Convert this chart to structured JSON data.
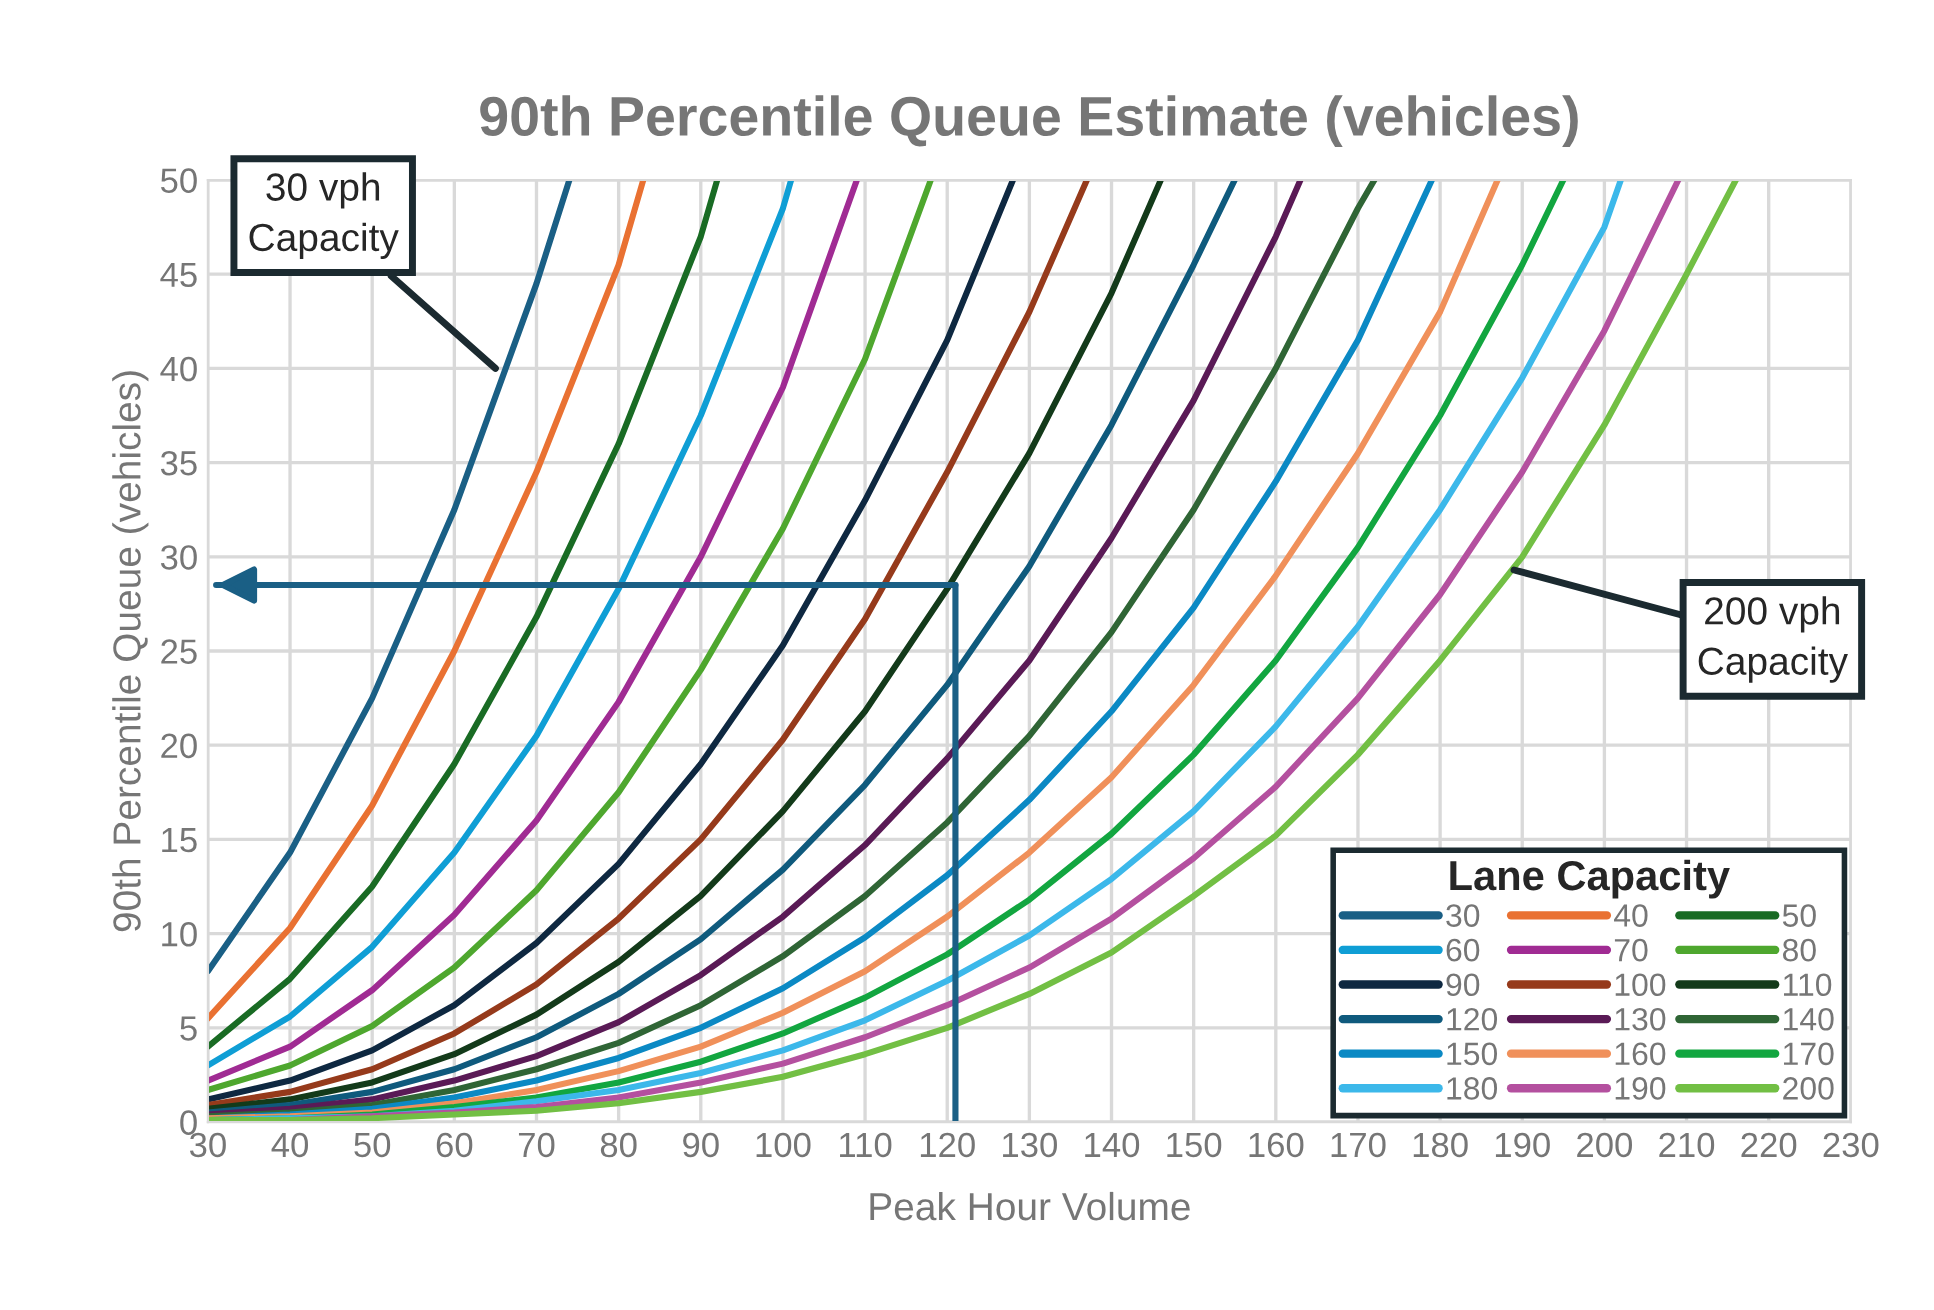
{
  "chart_data": {
    "type": "line",
    "title": "90th Percentile Queue Estimate (vehicles)",
    "xlabel": "Peak Hour Volume",
    "ylabel": "90th Percentile Queue (vehicles)",
    "legend_title": "Lane Capacity",
    "xlim": [
      30,
      230
    ],
    "xticks": [
      30,
      40,
      50,
      60,
      70,
      80,
      90,
      100,
      110,
      120,
      130,
      140,
      150,
      160,
      170,
      180,
      190,
      200,
      210,
      220,
      230
    ],
    "ylim": [
      0,
      50
    ],
    "yticks": [
      0,
      5,
      10,
      15,
      20,
      25,
      30,
      35,
      40,
      45,
      50
    ],
    "grid": true,
    "legend": "bottom right",
    "marker": "none",
    "line_style": "solid",
    "series": [
      {
        "name": "30",
        "color": "#1a5f85",
        "x": [
          30,
          40,
          50,
          60,
          70,
          74
        ],
        "values": [
          8,
          14.3,
          22.5,
          32.5,
          44.5,
          50
        ]
      },
      {
        "name": "40",
        "color": "#e97132",
        "x": [
          30,
          40,
          50,
          60,
          70,
          80,
          83
        ],
        "values": [
          5.5,
          10.3,
          16.8,
          25,
          34.5,
          45.5,
          50
        ]
      },
      {
        "name": "50",
        "color": "#196b24",
        "x": [
          30,
          40,
          50,
          60,
          70,
          80,
          90,
          92
        ],
        "values": [
          4,
          7.6,
          12.5,
          19,
          26.8,
          36,
          47,
          50
        ]
      },
      {
        "name": "60",
        "color": "#0f9ed5",
        "x": [
          30,
          40,
          50,
          60,
          70,
          80,
          90,
          100,
          101
        ],
        "values": [
          3,
          5.6,
          9.3,
          14.3,
          20.5,
          28.3,
          37.5,
          48.5,
          50
        ]
      },
      {
        "name": "70",
        "color": "#a02b93",
        "x": [
          30,
          40,
          50,
          60,
          70,
          80,
          90,
          100,
          109
        ],
        "values": [
          2.2,
          4,
          7,
          11,
          16,
          22.3,
          30,
          39,
          50
        ]
      },
      {
        "name": "80",
        "color": "#4ea72e",
        "x": [
          30,
          40,
          50,
          60,
          70,
          80,
          90,
          100,
          110,
          118
        ],
        "values": [
          1.7,
          3,
          5.1,
          8.2,
          12.3,
          17.5,
          24,
          31.5,
          40.5,
          50
        ]
      },
      {
        "name": "90",
        "color": "#0e2841",
        "x": [
          30,
          40,
          50,
          60,
          70,
          80,
          90,
          100,
          110,
          120,
          128
        ],
        "values": [
          1.2,
          2.2,
          3.8,
          6.2,
          9.5,
          13.7,
          19,
          25.3,
          33,
          41.5,
          50
        ]
      },
      {
        "name": "100",
        "color": "#963a1b",
        "x": [
          30,
          40,
          50,
          60,
          70,
          80,
          90,
          100,
          110,
          120,
          130,
          137
        ],
        "values": [
          0.9,
          1.6,
          2.8,
          4.7,
          7.3,
          10.8,
          15,
          20.3,
          26.7,
          34.5,
          43,
          50
        ]
      },
      {
        "name": "110",
        "color": "#133a1a",
        "x": [
          30,
          40,
          50,
          60,
          70,
          80,
          90,
          100,
          110,
          120,
          130,
          140,
          146
        ],
        "values": [
          0.7,
          1.2,
          2.1,
          3.6,
          5.7,
          8.5,
          12,
          16.5,
          21.8,
          28.3,
          35.5,
          44,
          50
        ]
      },
      {
        "name": "120",
        "color": "#0f5a7d",
        "x": [
          30,
          40,
          50,
          60,
          70,
          80,
          90,
          100,
          110,
          120,
          130,
          140,
          150,
          155
        ],
        "values": [
          0.5,
          0.9,
          1.6,
          2.8,
          4.5,
          6.8,
          9.7,
          13.4,
          17.9,
          23.2,
          29.5,
          37,
          45.5,
          50
        ]
      },
      {
        "name": "130",
        "color": "#5a1a56",
        "x": [
          30,
          40,
          50,
          60,
          70,
          80,
          90,
          100,
          110,
          120,
          130,
          140,
          150,
          160,
          163
        ],
        "values": [
          0.4,
          0.7,
          1.2,
          2.2,
          3.5,
          5.3,
          7.8,
          10.9,
          14.7,
          19.3,
          24.5,
          31,
          38.3,
          47,
          50
        ]
      },
      {
        "name": "140",
        "color": "#2f6535",
        "x": [
          30,
          40,
          50,
          60,
          70,
          80,
          90,
          100,
          110,
          120,
          130,
          140,
          150,
          160,
          170,
          172
        ],
        "values": [
          0.3,
          0.5,
          0.9,
          1.7,
          2.8,
          4.2,
          6.2,
          8.8,
          12,
          15.9,
          20.5,
          26,
          32.5,
          40,
          48.5,
          50
        ]
      },
      {
        "name": "150",
        "color": "#0b89c4",
        "x": [
          30,
          40,
          50,
          60,
          70,
          80,
          90,
          100,
          110,
          120,
          130,
          140,
          150,
          160,
          170,
          179
        ],
        "values": [
          0.2,
          0.4,
          0.7,
          1.3,
          2.2,
          3.4,
          5,
          7.1,
          9.8,
          13.1,
          17.1,
          21.8,
          27.3,
          34,
          41.5,
          50
        ]
      },
      {
        "name": "160",
        "color": "#f0905a",
        "x": [
          30,
          40,
          50,
          60,
          70,
          80,
          90,
          100,
          110,
          120,
          130,
          140,
          150,
          160,
          170,
          180,
          187
        ],
        "values": [
          0.2,
          0.3,
          0.5,
          1,
          1.7,
          2.7,
          4,
          5.8,
          8,
          10.9,
          14.3,
          18.3,
          23.2,
          29,
          35.5,
          43,
          50
        ]
      },
      {
        "name": "170",
        "color": "#12a640",
        "x": [
          30,
          40,
          50,
          60,
          70,
          80,
          90,
          100,
          110,
          120,
          130,
          140,
          150,
          160,
          170,
          180,
          190,
          195
        ],
        "values": [
          0.1,
          0.2,
          0.4,
          0.8,
          1.3,
          2.1,
          3.2,
          4.7,
          6.6,
          8.9,
          11.8,
          15.3,
          19.5,
          24.5,
          30.5,
          37.5,
          45.5,
          50
        ]
      },
      {
        "name": "180",
        "color": "#3cb8ea",
        "x": [
          30,
          40,
          50,
          60,
          70,
          80,
          90,
          100,
          110,
          120,
          130,
          140,
          150,
          160,
          170,
          180,
          190,
          200,
          202
        ],
        "values": [
          0.1,
          0.2,
          0.3,
          0.6,
          1.1,
          1.7,
          2.6,
          3.8,
          5.4,
          7.5,
          9.9,
          12.9,
          16.5,
          21,
          26.3,
          32.5,
          39.5,
          47.5,
          50
        ]
      },
      {
        "name": "190",
        "color": "#b4509f",
        "x": [
          30,
          40,
          50,
          60,
          70,
          80,
          90,
          100,
          110,
          120,
          130,
          140,
          150,
          160,
          170,
          180,
          190,
          200,
          209
        ],
        "values": [
          0.1,
          0.1,
          0.3,
          0.5,
          0.8,
          1.3,
          2.1,
          3.1,
          4.5,
          6.2,
          8.2,
          10.8,
          14,
          17.8,
          22.5,
          28,
          34.5,
          42,
          50
        ]
      },
      {
        "name": "200",
        "color": "#72bf44",
        "x": [
          30,
          40,
          50,
          60,
          70,
          80,
          90,
          100,
          110,
          120,
          130,
          140,
          150,
          160,
          170,
          180,
          190,
          200,
          210,
          216
        ],
        "values": [
          0.1,
          0.1,
          0.2,
          0.4,
          0.6,
          1,
          1.6,
          2.4,
          3.6,
          5,
          6.8,
          9,
          12,
          15.2,
          19.5,
          24.5,
          30,
          37,
          45,
          50
        ]
      },
      {
        "type": "line",
        "color": "#1a5f85",
        "x": [
          121,
          121,
          31
        ],
        "values": [
          0,
          28.5,
          28.5
        ]
      }
    ],
    "annotations": [
      {
        "text": "30 vph\nCapacity",
        "x": 65,
        "y": 40
      },
      {
        "text": "200 vph\nCapacity",
        "x": 189,
        "y": 29.3
      }
    ]
  }
}
